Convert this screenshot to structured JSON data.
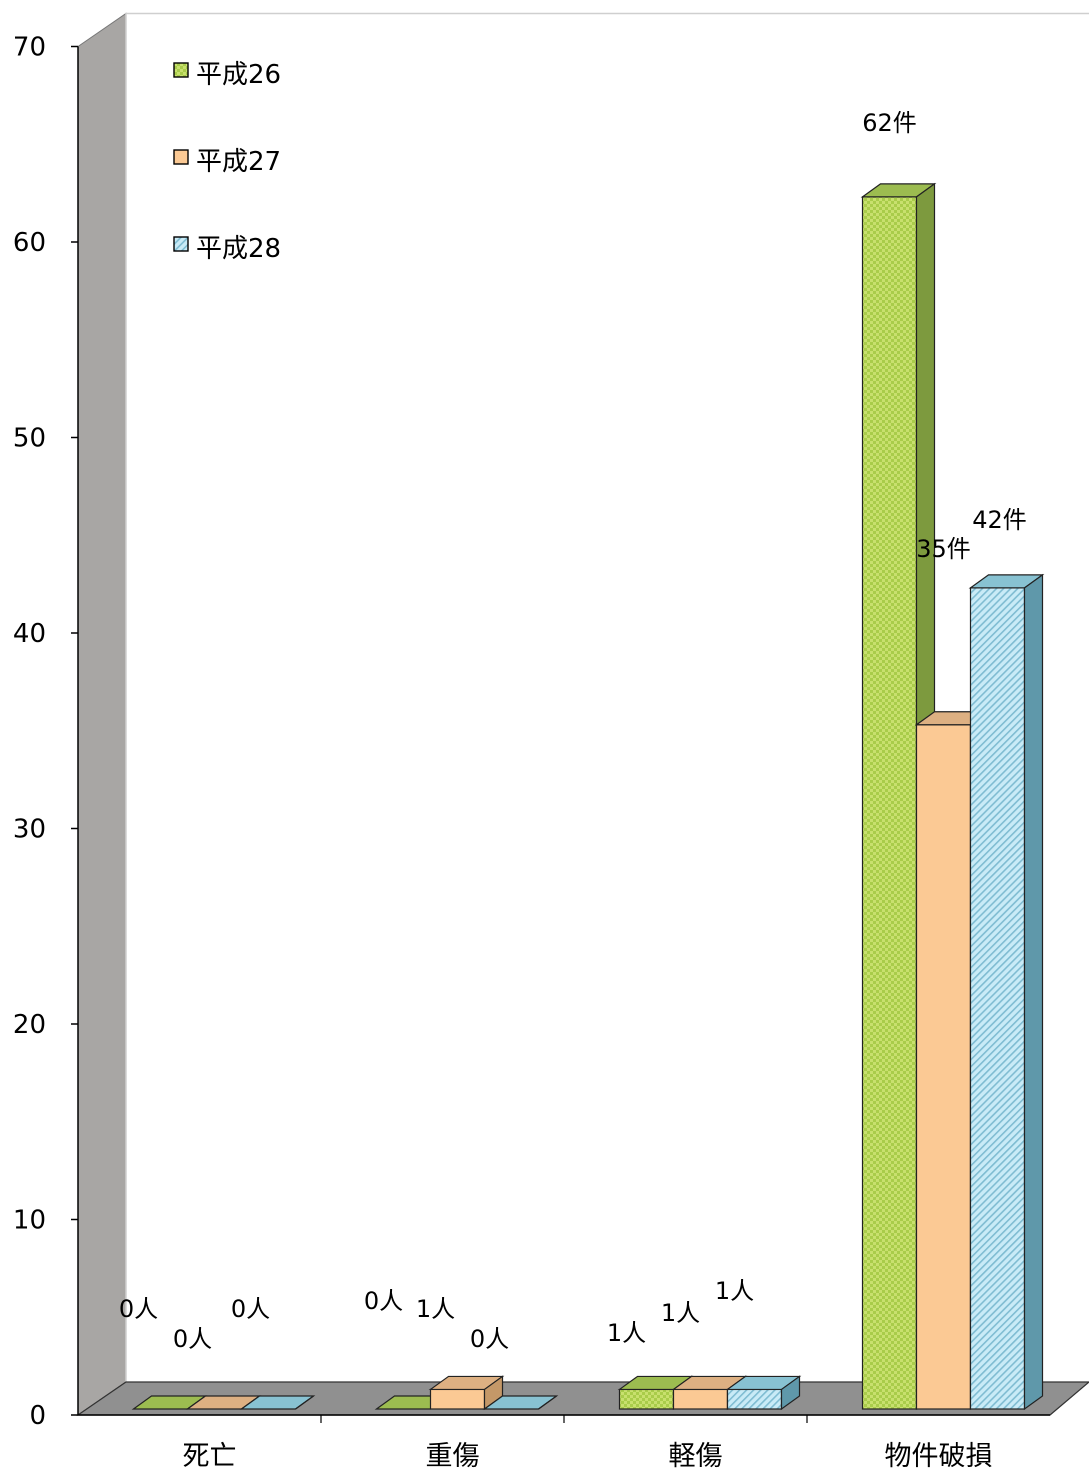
{
  "chart_data": {
    "type": "bar",
    "categories": [
      "死亡",
      "重傷",
      "軽傷",
      "物件破損"
    ],
    "series": [
      {
        "name": "平成26",
        "values": [
          0,
          0,
          1,
          62
        ],
        "labels": [
          "0人",
          "0人",
          "1人",
          "62件"
        ]
      },
      {
        "name": "平成27",
        "values": [
          0,
          1,
          1,
          35
        ],
        "labels": [
          "0人",
          "1人",
          "1人",
          "35件"
        ]
      },
      {
        "name": "平成28",
        "values": [
          0,
          0,
          1,
          42
        ],
        "labels": [
          "0人",
          "0人",
          "1人",
          "42件"
        ]
      }
    ],
    "ylim": [
      0,
      70
    ],
    "yticks": [
      0,
      10,
      20,
      30,
      40,
      50,
      60,
      70
    ],
    "title": "",
    "xlabel": "",
    "ylabel": "",
    "legend_position": "top-left",
    "colors": {
      "series_front": [
        "#c8e06e",
        "#fbc994",
        "#bfe4f2"
      ],
      "series_side": [
        "#7d9a3e",
        "#c49868",
        "#5f98aa"
      ],
      "series_top": [
        "#9cbc50",
        "#ddb082",
        "#88c2d2"
      ],
      "wall": "#a8a6a4",
      "floor": "#909090"
    }
  }
}
